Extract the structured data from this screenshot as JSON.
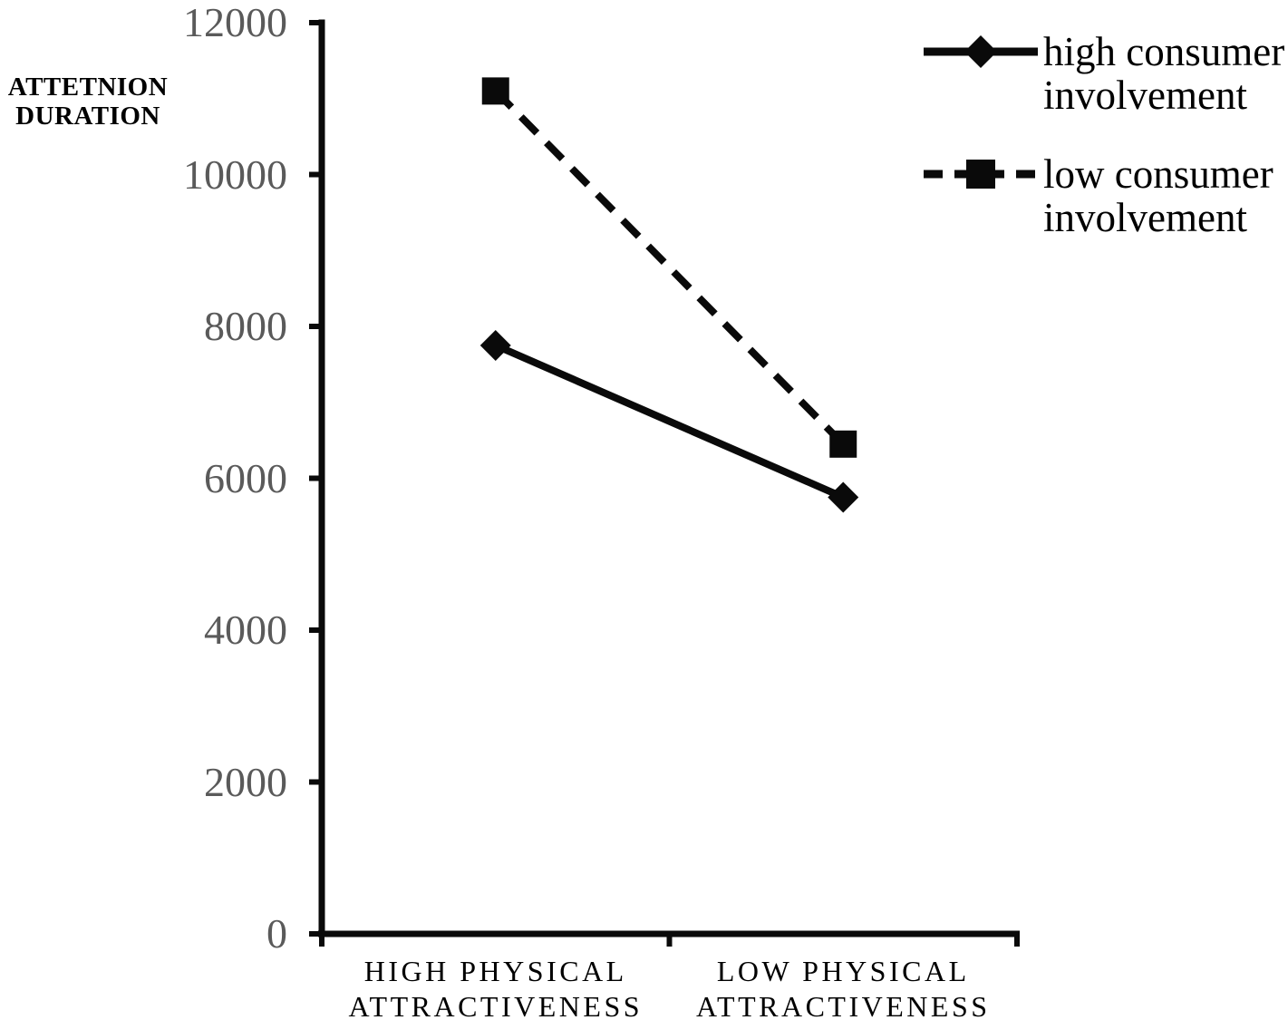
{
  "page": {
    "background": "#ffffff"
  },
  "chart_data": {
    "type": "line",
    "title": "",
    "xlabel": "",
    "ylabel": "ATTETNION DURATION",
    "categories": [
      "HIGH PHYSICAL\nATTRACTIVENESS",
      "LOW PHYSICAL\nATTRACTIVENESS"
    ],
    "series": [
      {
        "name": "high consumer involvement",
        "line_style": "solid",
        "marker": "diamond",
        "values": [
          7750,
          5750
        ]
      },
      {
        "name": "low consumer involvement",
        "line_style": "dashed",
        "marker": "square",
        "values": [
          11100,
          6450
        ]
      }
    ],
    "ylim": [
      0,
      12000
    ],
    "ytick_step": 2000,
    "ytick_labels": [
      "0",
      "2000",
      "4000",
      "6000",
      "8000",
      "10000",
      "12000"
    ],
    "grid": false,
    "legend_position": "top-right",
    "colors": {
      "series": "#0a0a0a",
      "axis": "#0a0a0a",
      "tick_label": "#5a5a5a",
      "text": "#000000",
      "background": "#ffffff"
    }
  }
}
